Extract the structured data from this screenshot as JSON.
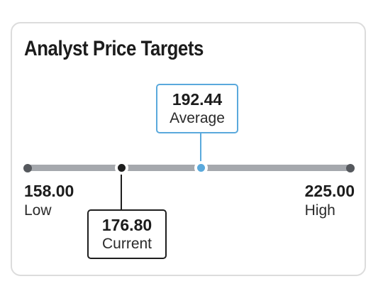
{
  "widget": {
    "title": "Analyst Price Targets"
  },
  "targets": {
    "low": {
      "value": "158.00",
      "label": "Low"
    },
    "high": {
      "value": "225.00",
      "label": "High"
    },
    "average": {
      "value": "192.44",
      "label": "Average"
    },
    "current": {
      "value": "176.80",
      "label": "Current"
    }
  },
  "colors": {
    "track": "#a5a8ad",
    "average_accent": "#5aa9dc",
    "current_accent": "#1e1e1e",
    "border": "#dcdcdc"
  }
}
